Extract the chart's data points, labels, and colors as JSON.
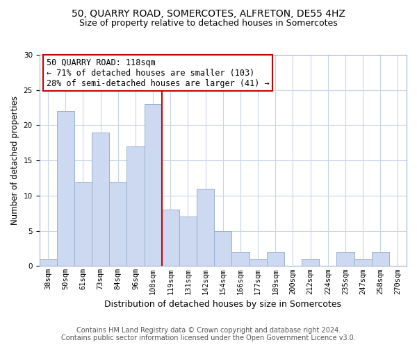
{
  "title": "50, QUARRY ROAD, SOMERCOTES, ALFRETON, DE55 4HZ",
  "subtitle": "Size of property relative to detached houses in Somercotes",
  "xlabel": "Distribution of detached houses by size in Somercotes",
  "ylabel": "Number of detached properties",
  "categories": [
    "38sqm",
    "50sqm",
    "61sqm",
    "73sqm",
    "84sqm",
    "96sqm",
    "108sqm",
    "119sqm",
    "131sqm",
    "142sqm",
    "154sqm",
    "166sqm",
    "177sqm",
    "189sqm",
    "200sqm",
    "212sqm",
    "224sqm",
    "235sqm",
    "247sqm",
    "258sqm",
    "270sqm"
  ],
  "values": [
    1,
    22,
    12,
    19,
    12,
    17,
    23,
    8,
    7,
    11,
    5,
    2,
    1,
    2,
    0,
    1,
    0,
    2,
    1,
    2,
    0
  ],
  "bar_color": "#ccd9f0",
  "bar_edge_color": "#9ab0d0",
  "highlight_line_color": "#cc0000",
  "ylim": [
    0,
    30
  ],
  "yticks": [
    0,
    5,
    10,
    15,
    20,
    25,
    30
  ],
  "annotation_title": "50 QUARRY ROAD: 118sqm",
  "annotation_line1": "← 71% of detached houses are smaller (103)",
  "annotation_line2": "28% of semi-detached houses are larger (41) →",
  "annotation_box_color": "#ffffff",
  "annotation_box_edge_color": "#cc0000",
  "footer_line1": "Contains HM Land Registry data © Crown copyright and database right 2024.",
  "footer_line2": "Contains public sector information licensed under the Open Government Licence v3.0.",
  "title_fontsize": 10,
  "subtitle_fontsize": 9,
  "xlabel_fontsize": 9,
  "ylabel_fontsize": 8.5,
  "tick_fontsize": 7.5,
  "footer_fontsize": 7,
  "annotation_fontsize": 8.5,
  "grid_color": "#c8d4e8"
}
